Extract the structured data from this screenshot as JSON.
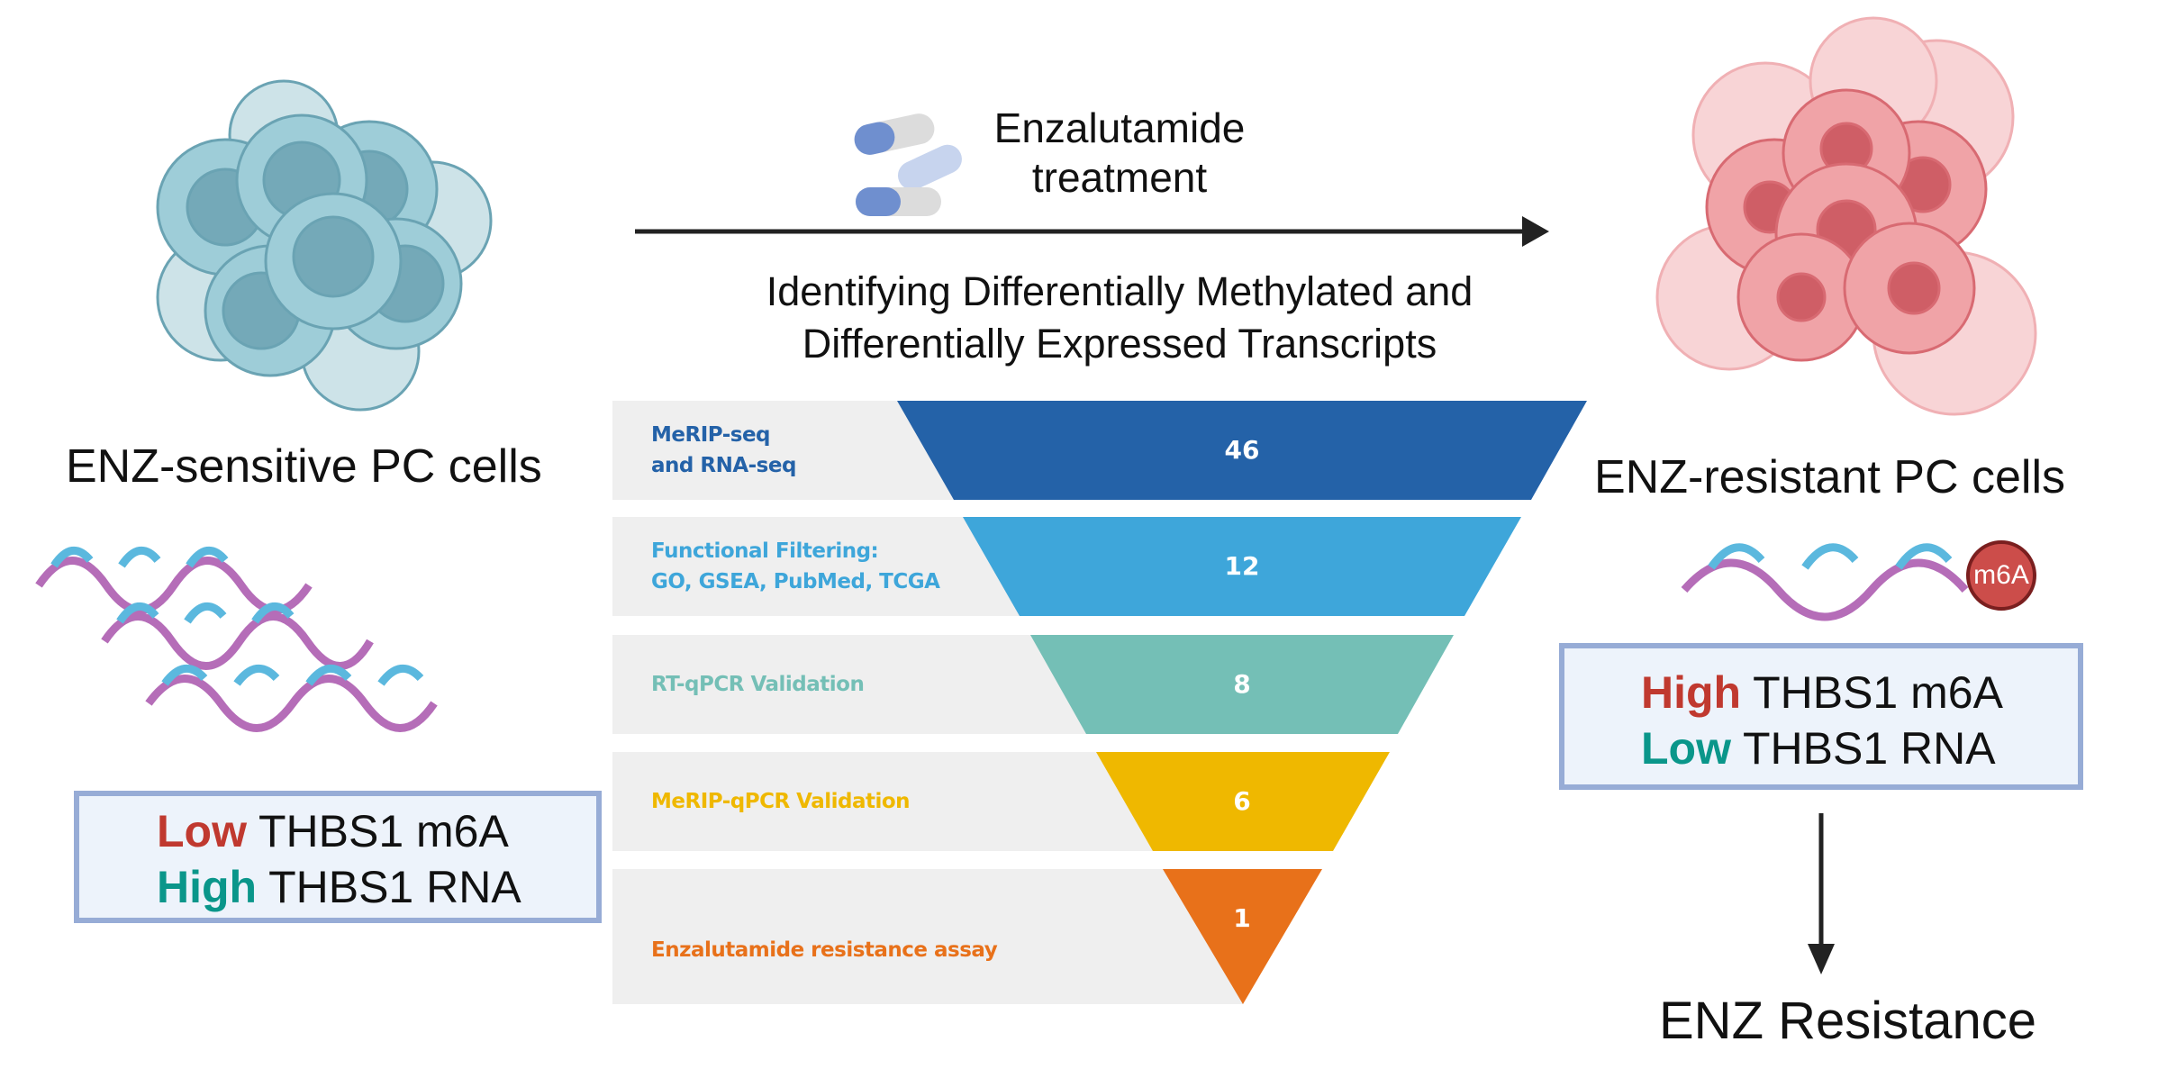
{
  "left": {
    "title": "ENZ-sensitive PC cells",
    "box": {
      "line1_highlight": "Low",
      "line1_rest": " THBS1 m6A",
      "line2_highlight": "High",
      "line2_rest": " THBS1 RNA"
    }
  },
  "center": {
    "treatment": [
      "Enzalutamide",
      "treatment"
    ],
    "heading": [
      "Identifying Differentially Methylated and",
      "Differentially Expressed Transcripts"
    ],
    "funnel": [
      {
        "label": [
          "MeRIP-seq",
          "and RNA-seq"
        ],
        "count": "46",
        "color": "#2462a8"
      },
      {
        "label": [
          "Functional Filtering:",
          "GO, GSEA, PubMed, TCGA"
        ],
        "count": "12",
        "color": "#3ea6da"
      },
      {
        "label": [
          "RT-qPCR Validation"
        ],
        "count": "8",
        "color": "#74bfb6"
      },
      {
        "label": [
          "MeRIP-qPCR Validation"
        ],
        "count": "6",
        "color": "#efb800"
      },
      {
        "label": [
          "Enzalutamide resistance assay"
        ],
        "count": "1",
        "color": "#e8711a"
      }
    ]
  },
  "right": {
    "title": "ENZ-resistant PC cells",
    "m6a_badge": "m6A",
    "box": {
      "line1_highlight": "High",
      "line1_rest": " THBS1 m6A",
      "line2_highlight": "Low",
      "line2_rest": " THBS1 RNA"
    },
    "outcome": "ENZ Resistance"
  },
  "colors": {
    "red": "#c0392f",
    "teal": "#0a968a",
    "rna_blue": "#5bb8de",
    "rna_purple": "#b56db8"
  }
}
